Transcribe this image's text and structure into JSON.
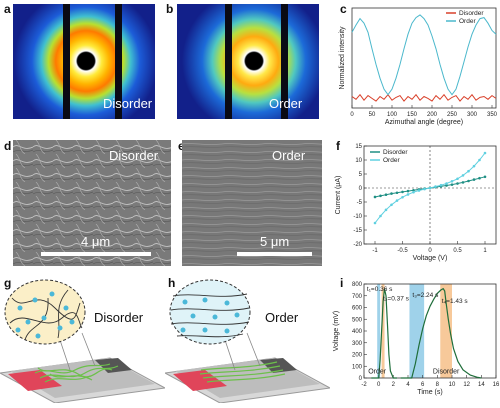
{
  "panel_labels": [
    "a",
    "b",
    "c",
    "d",
    "e",
    "f",
    "g",
    "h",
    "i"
  ],
  "panel_a": {
    "label": "Disorder"
  },
  "panel_b": {
    "label": "Order"
  },
  "panel_d": {
    "label": "Disorder",
    "scale": "4 μm"
  },
  "panel_e": {
    "label": "Order",
    "scale": "5 μm"
  },
  "panel_g": {
    "label": "Disorder"
  },
  "panel_h": {
    "label": "Order"
  },
  "colors": {
    "disorder_c": "#d9402a",
    "order_c": "#4bb8cc",
    "disorder_f": "#1f8f84",
    "order_f": "#5fd0e0",
    "curve_i": "#1f6e3a",
    "blue_band": "#9fd2ea",
    "orange_band": "#f7c99a"
  },
  "chart_data": [
    {
      "panel": "c",
      "type": "line",
      "xlabel": "Azimuthal angle (degree)",
      "ylabel": "Normalized intensity",
      "xlim": [
        0,
        360
      ],
      "xticks": [
        0,
        50,
        100,
        150,
        200,
        250,
        300,
        350
      ],
      "legend": "top-right",
      "series": [
        {
          "name": "Disorder",
          "x": [
            0,
            10,
            20,
            30,
            40,
            50,
            60,
            70,
            80,
            90,
            100,
            110,
            120,
            130,
            140,
            150,
            160,
            170,
            180,
            190,
            200,
            210,
            220,
            230,
            240,
            250,
            260,
            270,
            280,
            290,
            300,
            310,
            320,
            330,
            340,
            350,
            360
          ],
          "values": [
            0.1,
            0.07,
            0.12,
            0.06,
            0.11,
            0.08,
            0.05,
            0.1,
            0.07,
            0.12,
            0.06,
            0.09,
            0.11,
            0.05,
            0.1,
            0.07,
            0.12,
            0.06,
            0.1,
            0.08,
            0.05,
            0.11,
            0.07,
            0.12,
            0.06,
            0.09,
            0.11,
            0.05,
            0.1,
            0.07,
            0.12,
            0.06,
            0.09,
            0.1,
            0.07,
            0.11,
            0.08
          ]
        },
        {
          "name": "Order",
          "x": [
            0,
            10,
            20,
            30,
            40,
            50,
            60,
            70,
            80,
            90,
            100,
            110,
            120,
            130,
            140,
            150,
            160,
            170,
            180,
            190,
            200,
            210,
            220,
            230,
            240,
            250,
            260,
            270,
            280,
            290,
            300,
            310,
            320,
            330,
            340,
            350,
            360
          ],
          "values": [
            0.8,
            0.88,
            0.95,
            0.9,
            0.8,
            0.62,
            0.45,
            0.3,
            0.18,
            0.12,
            0.18,
            0.3,
            0.45,
            0.62,
            0.78,
            0.9,
            0.96,
            0.99,
            0.95,
            0.88,
            0.76,
            0.62,
            0.45,
            0.3,
            0.18,
            0.12,
            0.18,
            0.32,
            0.48,
            0.64,
            0.78,
            0.88,
            0.95,
            0.96,
            0.9,
            0.82,
            0.78
          ]
        }
      ]
    },
    {
      "panel": "f",
      "type": "line",
      "xlabel": "Voltage (V)",
      "ylabel": "Current (μA)",
      "xlim": [
        -1.2,
        1.2
      ],
      "ylim": [
        -20,
        15
      ],
      "xticks": [
        -1.0,
        -0.5,
        0.0,
        0.5,
        1.0
      ],
      "yticks": [
        -20,
        -15,
        -10,
        -5,
        0,
        5,
        10,
        15
      ],
      "legend": "top-left",
      "series": [
        {
          "name": "Disorder",
          "x": [
            -1.0,
            -0.9,
            -0.8,
            -0.7,
            -0.6,
            -0.5,
            -0.4,
            -0.3,
            -0.2,
            -0.1,
            0,
            0.1,
            0.2,
            0.3,
            0.4,
            0.5,
            0.6,
            0.7,
            0.8,
            0.9,
            1.0
          ],
          "values": [
            -3.2,
            -2.8,
            -2.4,
            -2.0,
            -1.7,
            -1.4,
            -1.1,
            -0.8,
            -0.5,
            -0.25,
            0,
            0.3,
            0.6,
            0.9,
            1.2,
            1.6,
            2.0,
            2.5,
            3.0,
            3.5,
            4.0
          ]
        },
        {
          "name": "Order",
          "x": [
            -1.0,
            -0.9,
            -0.8,
            -0.7,
            -0.6,
            -0.5,
            -0.4,
            -0.3,
            -0.2,
            -0.1,
            0,
            0.1,
            0.2,
            0.3,
            0.4,
            0.5,
            0.6,
            0.7,
            0.8,
            0.9,
            1.0
          ],
          "values": [
            -12.5,
            -10.0,
            -7.8,
            -6.0,
            -4.5,
            -3.3,
            -2.3,
            -1.5,
            -0.9,
            -0.4,
            0,
            0.5,
            1.0,
            1.6,
            2.4,
            3.3,
            4.5,
            6.0,
            7.8,
            10.0,
            12.5
          ]
        }
      ]
    },
    {
      "panel": "i",
      "type": "line",
      "xlabel": "Time (s)",
      "ylabel": "Voltage (mV)",
      "xlim": [
        -2,
        16
      ],
      "ylim": [
        0,
        800
      ],
      "xticks": [
        -2,
        0,
        2,
        4,
        6,
        8,
        10,
        12,
        14,
        16
      ],
      "yticks": [
        0,
        100,
        200,
        300,
        400,
        500,
        600,
        700,
        800
      ],
      "annotations": [
        "t₁=0.36 s",
        "t₂=0.37 s",
        "t₃=2.24 s",
        "t₄=1.43 s",
        "Order",
        "Disorder"
      ],
      "series": [
        {
          "name": "",
          "x": [
            -1.0,
            0.0,
            0.2,
            0.4,
            0.6,
            0.8,
            1.0,
            1.2,
            1.4,
            1.6,
            2.0,
            2.5
          ],
          "values": [
            0,
            0,
            150,
            400,
            650,
            760,
            700,
            450,
            200,
            60,
            0,
            0
          ]
        },
        {
          "name": "",
          "x": [
            3.0,
            4.5,
            5.0,
            5.5,
            6.0,
            6.5,
            7.0,
            7.5,
            8.0,
            8.5,
            8.8,
            9.0,
            9.2,
            9.5,
            9.8,
            10.2,
            10.8,
            11.5,
            12.5,
            13.5,
            14.0
          ],
          "values": [
            0,
            0,
            120,
            280,
            420,
            530,
            610,
            670,
            720,
            750,
            760,
            740,
            640,
            500,
            380,
            250,
            140,
            70,
            25,
            5,
            0
          ]
        }
      ]
    }
  ]
}
